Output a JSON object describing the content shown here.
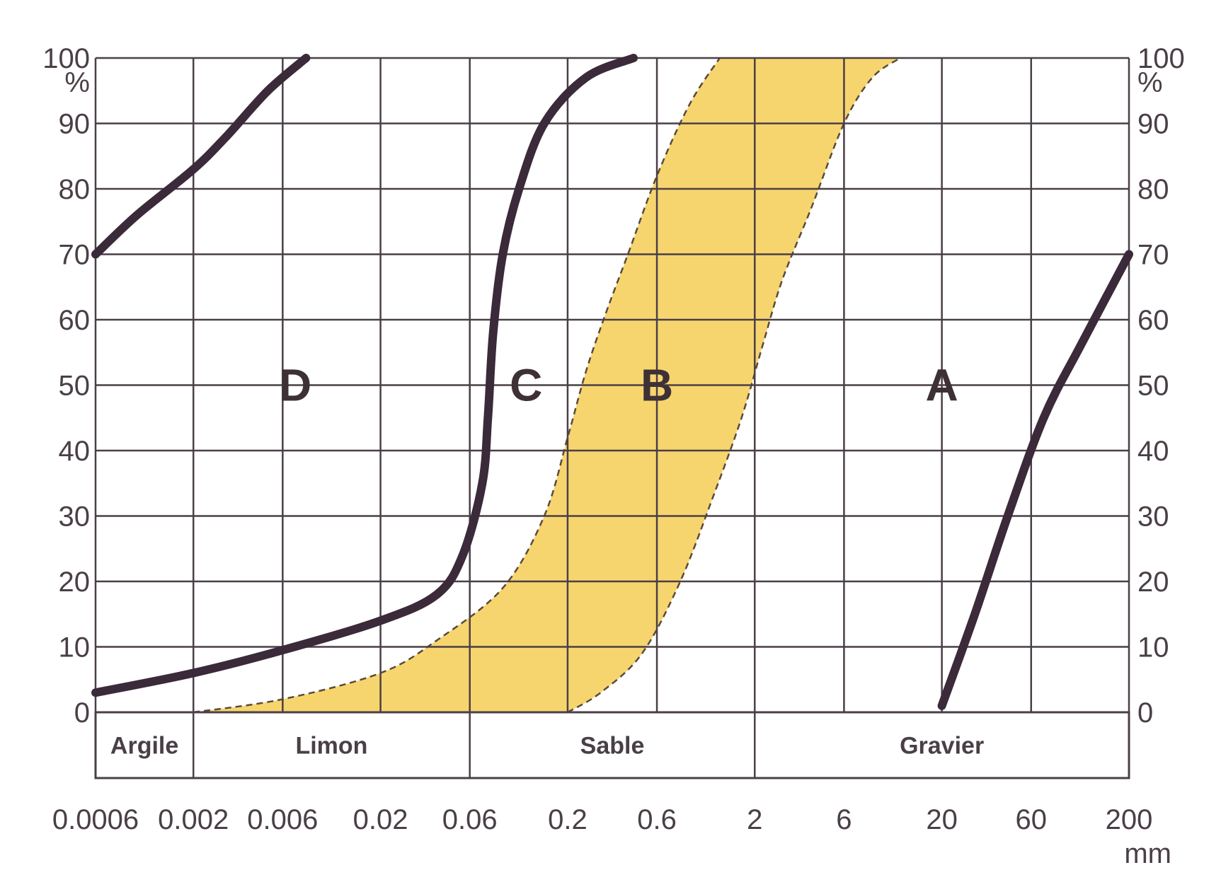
{
  "chart_data": {
    "type": "area",
    "x_scale": "log",
    "x_unit": "mm",
    "y_unit": "%",
    "x_ticks": [
      "0.0006",
      "0.002",
      "0.006",
      "0.02",
      "0.06",
      "0.2",
      "0.6",
      "2",
      "6",
      "20",
      "60",
      "200"
    ],
    "y_ticks": [
      "0",
      "10",
      "20",
      "30",
      "40",
      "50",
      "60",
      "70",
      "80",
      "90",
      "100"
    ],
    "ylim": [
      0,
      100
    ],
    "grid": true,
    "regions": [
      {
        "label": "Argile",
        "from": 0.0006,
        "to": 0.002
      },
      {
        "label": "Limon",
        "from": 0.002,
        "to": 0.06
      },
      {
        "label": "Sable",
        "from": 0.06,
        "to": 2
      },
      {
        "label": "Gravier",
        "from": 2,
        "to": 200
      }
    ],
    "zones": [
      "D",
      "C",
      "B",
      "A"
    ],
    "curves": [
      {
        "color": "#3b2a3a",
        "points": [
          [
            0.0006,
            70
          ],
          [
            0.001,
            76
          ],
          [
            0.002,
            83
          ],
          [
            0.003,
            88
          ],
          [
            0.005,
            95
          ],
          [
            0.008,
            100
          ]
        ]
      },
      {
        "color": "#3b2a3a",
        "points": [
          [
            0.0006,
            3
          ],
          [
            0.002,
            6
          ],
          [
            0.006,
            9.5
          ],
          [
            0.02,
            14
          ],
          [
            0.04,
            18
          ],
          [
            0.055,
            24
          ],
          [
            0.07,
            35
          ],
          [
            0.075,
            45
          ],
          [
            0.08,
            58
          ],
          [
            0.09,
            70
          ],
          [
            0.11,
            80
          ],
          [
            0.15,
            90
          ],
          [
            0.25,
            97
          ],
          [
            0.45,
            100
          ]
        ]
      },
      {
        "color": "#3b2a3a",
        "points": [
          [
            20,
            1
          ],
          [
            30,
            15
          ],
          [
            45,
            30
          ],
          [
            70,
            45
          ],
          [
            110,
            56
          ],
          [
            200,
            70
          ]
        ]
      }
    ],
    "band": {
      "fill": "#f7d56e",
      "stroke": "#5a4a3a",
      "upper": [
        [
          0.002,
          0
        ],
        [
          0.006,
          2
        ],
        [
          0.02,
          6
        ],
        [
          0.04,
          11
        ],
        [
          0.09,
          19
        ],
        [
          0.15,
          30
        ],
        [
          0.2,
          42
        ],
        [
          0.25,
          52
        ],
        [
          0.32,
          61
        ],
        [
          0.42,
          70
        ],
        [
          0.6,
          82
        ],
        [
          0.9,
          93
        ],
        [
          1.3,
          100
        ]
      ],
      "lower": [
        [
          0.2,
          0
        ],
        [
          0.3,
          3
        ],
        [
          0.5,
          9
        ],
        [
          0.8,
          20
        ],
        [
          1.2,
          33
        ],
        [
          1.7,
          45
        ],
        [
          2.2,
          56
        ],
        [
          2.8,
          66
        ],
        [
          4,
          77
        ],
        [
          6,
          90
        ],
        [
          8.5,
          97
        ],
        [
          12,
          100
        ]
      ]
    }
  }
}
